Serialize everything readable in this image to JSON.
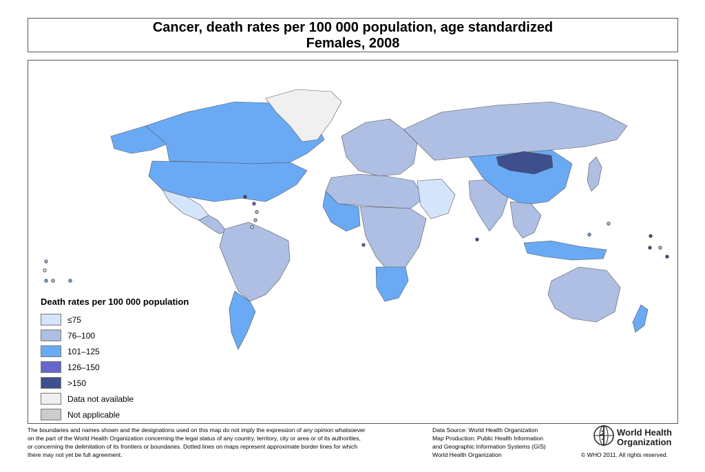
{
  "title": {
    "line1": "Cancer, death rates per 100 000 population, age standardized",
    "line2": "Females, 2008"
  },
  "legend": {
    "title": "Death rates per 100 000 population",
    "items": [
      {
        "label": "≤75",
        "color": "#d4e4fb"
      },
      {
        "label": "76–100",
        "color": "#aebfe3"
      },
      {
        "label": "101–125",
        "color": "#6aaaf5"
      },
      {
        "label": "126–150",
        "color": "#6666cc"
      },
      {
        "label": ">150",
        "color": "#3f4e8c"
      },
      {
        "label": "Data not available",
        "color": "#f0f0f0"
      },
      {
        "label": "Not applicable",
        "color": "#cccccc"
      }
    ]
  },
  "footer": {
    "disclaimer": [
      "The boundaries and names shown and the designations used on this map do not imply the expression of any opinion whatsoever",
      "on the part of the World Health Organization concerning the legal status of any country, territory, city or area or of its authorities,",
      "or concerning the delimitation of its frontiers or boundaries.  Dotted lines on maps represent approximate border lines for which",
      "there may not yet be full agreement."
    ],
    "source": [
      "Data Source: World Health Organization",
      "Map Production: Public Health Information",
      "and Geographic Information Systems (GIS)",
      "World Health Organization"
    ],
    "org_name_line1": "World Health",
    "org_name_line2": "Organization",
    "copyright": "© WHO 2011. All rights reserved."
  },
  "map": {
    "regions": [
      {
        "name": "canada",
        "class": 2
      },
      {
        "name": "usa",
        "class": 2
      },
      {
        "name": "alaska",
        "class": 2
      },
      {
        "name": "greenland",
        "class": 5
      },
      {
        "name": "mexico",
        "class": 0
      },
      {
        "name": "central-america",
        "class": 1
      },
      {
        "name": "south-america",
        "class": 1
      },
      {
        "name": "argentina",
        "class": 2
      },
      {
        "name": "europe",
        "class": 1
      },
      {
        "name": "russia",
        "class": 1
      },
      {
        "name": "north-africa",
        "class": 1
      },
      {
        "name": "west-africa",
        "class": 2
      },
      {
        "name": "central-africa",
        "class": 1
      },
      {
        "name": "southern-africa",
        "class": 2
      },
      {
        "name": "arabia",
        "class": 0
      },
      {
        "name": "india",
        "class": 1
      },
      {
        "name": "china",
        "class": 2
      },
      {
        "name": "mongolia",
        "class": 4
      },
      {
        "name": "southeast-asia",
        "class": 1
      },
      {
        "name": "indonesia",
        "class": 2
      },
      {
        "name": "japan",
        "class": 1
      },
      {
        "name": "australia",
        "class": 1
      },
      {
        "name": "new-zealand",
        "class": 2
      }
    ]
  }
}
